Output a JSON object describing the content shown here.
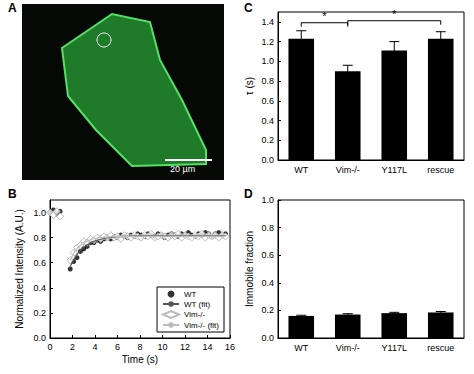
{
  "image": {
    "label": "A",
    "scale_bar": "20 µm"
  },
  "chart_data": [
    {
      "type": "line",
      "title": "B",
      "x_label": "Time (s)",
      "y_label": "Normalized Intensity (A.U.)",
      "xlim": [
        0,
        16
      ],
      "xticks": [
        0,
        2,
        4,
        6,
        8,
        10,
        12,
        14,
        16
      ],
      "ylim": [
        0,
        1.1
      ],
      "yticks": [
        {
          "value": 0,
          "label": "0.0"
        },
        0.2,
        0.4,
        0.6,
        0.8,
        {
          "value": 1,
          "label": "1.0"
        }
      ],
      "grid": false,
      "legend": "bottom-right",
      "x": [
        0,
        0.3,
        0.6,
        0.9,
        1.8,
        2.1,
        2.4,
        2.7,
        3.0,
        3.3,
        3.6,
        3.9,
        4.2,
        4.5,
        4.8,
        5.1,
        5.4,
        5.7,
        6.0,
        6.3,
        6.6,
        6.9,
        7.2,
        7.5,
        7.8,
        8.1,
        8.4,
        8.7,
        9.0,
        9.3,
        9.6,
        9.9,
        10.2,
        10.5,
        10.8,
        11.1,
        11.4,
        11.7,
        12.0,
        12.3,
        12.6,
        12.9,
        13.2,
        13.5,
        13.8,
        14.1,
        14.4,
        14.7,
        15.0,
        15.3,
        15.6
      ],
      "series": [
        {
          "name": "WT",
          "type": "scatter",
          "marker": "circle",
          "color": "#000000",
          "values": [
            1.0,
            1.02,
            0.99,
            1.01,
            0.55,
            0.61,
            0.64,
            0.69,
            0.71,
            0.73,
            0.76,
            0.76,
            0.78,
            0.77,
            0.79,
            0.8,
            0.79,
            0.81,
            0.8,
            0.82,
            0.81,
            0.8,
            0.82,
            0.81,
            0.83,
            0.82,
            0.81,
            0.83,
            0.82,
            0.81,
            0.83,
            0.82,
            0.8,
            0.82,
            0.83,
            0.82,
            0.81,
            0.83,
            0.82,
            0.84,
            0.82,
            0.81,
            0.83,
            0.82,
            0.84,
            0.83,
            0.81,
            0.83,
            0.84,
            0.82,
            0.83
          ]
        },
        {
          "name": "WT (fit)",
          "type": "line",
          "line_style": "solid",
          "color": "#555555",
          "x": [
            1.8,
            2.1,
            2.4,
            2.7,
            3.0,
            3.5,
            4,
            5,
            6,
            8,
            10,
            12,
            14,
            15.6
          ],
          "values": [
            0.57,
            0.623,
            0.665,
            0.697,
            0.723,
            0.753,
            0.774,
            0.797,
            0.807,
            0.814,
            0.815,
            0.815,
            0.815,
            0.815
          ]
        },
        {
          "name": "Vim-/-",
          "type": "scatter",
          "marker": "open-diamond",
          "color": "#aaaaaa",
          "values": [
            1.0,
            0.98,
            1.01,
            0.97,
            0.62,
            0.68,
            0.72,
            0.74,
            0.77,
            0.76,
            0.79,
            0.78,
            0.8,
            0.79,
            0.81,
            0.8,
            0.82,
            0.8,
            0.81,
            0.79,
            0.82,
            0.81,
            0.8,
            0.82,
            0.81,
            0.8,
            0.82,
            0.81,
            0.83,
            0.8,
            0.81,
            0.82,
            0.81,
            0.8,
            0.82,
            0.81,
            0.83,
            0.8,
            0.82,
            0.81,
            0.8,
            0.82,
            0.81,
            0.83,
            0.8,
            0.82,
            0.81,
            0.82,
            0.8,
            0.82,
            0.81
          ]
        },
        {
          "name": "Vim-/- (fit)",
          "type": "line",
          "line_style": "solid",
          "color": "#bbbbbb",
          "x": [
            1.8,
            2.1,
            2.4,
            2.7,
            3.0,
            3.5,
            4,
            5,
            6,
            8,
            10,
            12,
            14,
            15.6
          ],
          "values": [
            0.62,
            0.674,
            0.713,
            0.74,
            0.76,
            0.781,
            0.793,
            0.804,
            0.808,
            0.81,
            0.81,
            0.81,
            0.81,
            0.81
          ]
        }
      ]
    },
    {
      "type": "bar",
      "title": "C",
      "y_label": "τ (s)",
      "categories": [
        "WT",
        "Vim-/-",
        "Y117L",
        "rescue"
      ],
      "values": [
        1.23,
        0.9,
        1.11,
        1.23
      ],
      "errors": [
        0.08,
        0.06,
        0.09,
        0.07
      ],
      "color": "#000000",
      "ylim": [
        0,
        1.5
      ],
      "yticks": [
        {
          "value": 0,
          "label": "0.0"
        },
        0.2,
        0.4,
        0.6,
        0.8,
        {
          "value": 1,
          "label": "1.0"
        },
        1.2,
        1.4
      ],
      "grid": false,
      "annotations": [
        {
          "text": "*",
          "from": "WT",
          "to": "Vim-/-"
        },
        {
          "text": "*",
          "from": "Vim-/-",
          "to": "rescue"
        }
      ]
    },
    {
      "type": "bar",
      "title": "D",
      "y_label": "Immobile fraction",
      "categories": [
        "WT",
        "Vim-/-",
        "Y117L",
        "rescue"
      ],
      "values": [
        0.16,
        0.17,
        0.18,
        0.185
      ],
      "errors": [
        0.005,
        0.006,
        0.006,
        0.007
      ],
      "color": "#000000",
      "ylim": [
        0,
        1
      ],
      "yticks": [
        {
          "value": 0,
          "label": "0.0"
        },
        0.2,
        0.4,
        0.6,
        0.8,
        {
          "value": 1,
          "label": "1.0"
        }
      ],
      "grid": false
    }
  ]
}
